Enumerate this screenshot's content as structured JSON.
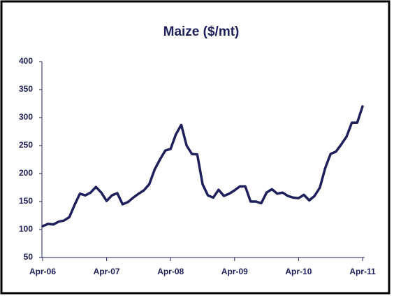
{
  "chart_data": {
    "type": "line",
    "title": "Maize ($/mt)",
    "categories": [
      "Apr-06",
      null,
      null,
      null,
      null,
      null,
      null,
      null,
      null,
      null,
      null,
      null,
      "Apr-07",
      null,
      null,
      null,
      null,
      null,
      null,
      null,
      null,
      null,
      null,
      null,
      "Apr-08",
      null,
      null,
      null,
      null,
      null,
      null,
      null,
      null,
      null,
      null,
      null,
      "Apr-09",
      null,
      null,
      null,
      null,
      null,
      null,
      null,
      null,
      null,
      null,
      null,
      "Apr-10",
      null,
      null,
      null,
      null,
      null,
      null,
      null,
      null,
      null,
      null,
      null,
      "Apr-11"
    ],
    "series": [
      {
        "name": "Maize",
        "color": "#1f1f5c",
        "values": [
          106,
          110,
          109,
          114,
          116,
          122,
          144,
          164,
          161,
          166,
          176,
          166,
          151,
          161,
          165,
          145,
          149,
          157,
          164,
          170,
          181,
          207,
          225,
          241,
          244,
          270,
          287,
          250,
          235,
          234,
          181,
          161,
          157,
          171,
          160,
          164,
          170,
          177,
          177,
          150,
          150,
          147,
          166,
          172,
          164,
          166,
          160,
          157,
          156,
          162,
          152,
          160,
          175,
          210,
          235,
          239,
          252,
          266,
          291,
          291,
          320
        ]
      }
    ],
    "ylim": [
      50,
      400
    ],
    "yticks": [
      50,
      100,
      150,
      200,
      250,
      300,
      350,
      400
    ],
    "grid": false
  }
}
